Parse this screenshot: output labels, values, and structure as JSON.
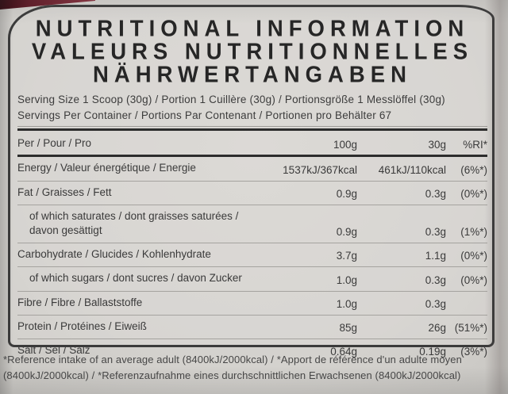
{
  "colors": {
    "background": "#d4d2ce",
    "panel_border": "#3b3b3b",
    "text": "#3a3a3a",
    "rule_thin": "#a5a39f",
    "rule_thick": "#2c2c2c",
    "lid_red": "#6f222f",
    "lid_red_dark": "#30070e"
  },
  "label": {
    "title_lines": [
      "NUTRITIONAL INFORMATION",
      "VALEURS NUTRITIONNELLES",
      "NÄHRWERTANGABEN"
    ],
    "serving_size": "Serving Size 1 Scoop (30g) / Portion 1 Cuillère (30g) / Portionsgröße 1 Messlöffel (30g)",
    "servings_per_container": "Servings Per Container / Portions Par Contenant / Portionen pro Behälter 67",
    "table": {
      "header": {
        "label": "Per / Pour / Pro",
        "per100": "100g",
        "per30": "30g",
        "ri": "%RI*"
      },
      "rows": [
        {
          "label": "Energy / Valeur énergétique / Energie",
          "per100": "1537kJ/367kcal",
          "per30": "461kJ/110kcal",
          "ri": "(6%*)"
        },
        {
          "label": "Fat / Graisses / Fett",
          "per100": "0.9g",
          "per30": "0.3g",
          "ri": "(0%*)"
        },
        {
          "label": "of which saturates / dont graisses saturées /",
          "label2": "davon gesättigt",
          "per100": "0.9g",
          "per30": "0.3g",
          "ri": "(1%*)"
        },
        {
          "label": "Carbohydrate / Glucides / Kohlenhydrate",
          "per100": "3.7g",
          "per30": "1.1g",
          "ri": "(0%*)"
        },
        {
          "label": "of which sugars / dont sucres / davon Zucker",
          "per100": "1.0g",
          "per30": "0.3g",
          "ri": "(0%*)"
        },
        {
          "label": "Fibre / Fibre / Ballaststoffe",
          "per100": "1.0g",
          "per30": "0.3g",
          "ri": ""
        },
        {
          "label": "Protein / Protéines / Eiweiß",
          "per100": "85g",
          "per30": "26g",
          "ri": "(51%*)"
        },
        {
          "label": "Salt / Sel / Salz",
          "per100": "0.64g",
          "per30": "0.19g",
          "ri": "(3%*)"
        }
      ]
    },
    "footnote": "*Reference intake of an average adult (8400kJ/2000kcal) / *Apport de référence d'un adulte moyen (8400kJ/2000kcal) / *Referenzaufnahme eines durchschnittlichen Erwachsenen (8400kJ/2000kcal)"
  }
}
